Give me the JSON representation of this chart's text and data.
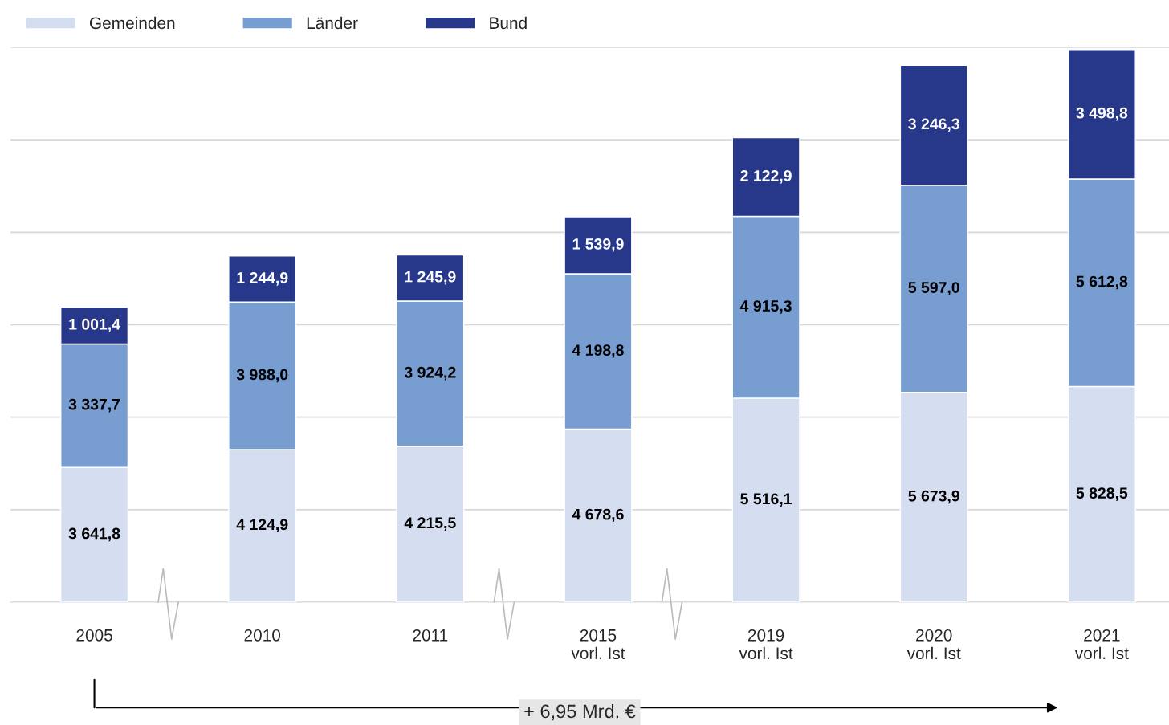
{
  "chart_data": {
    "type": "bar",
    "stacked": true,
    "categories": [
      "2005",
      "2010",
      "2011",
      "2015\nvorl. Ist",
      "2019\nvorl. Ist",
      "2020\nvorl. Ist",
      "2021\nvorl. Ist"
    ],
    "series": [
      {
        "name": "Gemeinden",
        "color": "#d5ddf0",
        "values": [
          3641.8,
          4124.9,
          4215.5,
          4678.6,
          5516.1,
          5673.9,
          5828.5
        ],
        "value_labels": [
          "3 641,8",
          "4 124,9",
          "4 215,5",
          "4 678,6",
          "5 516,1",
          "5 673,9",
          "5 828,5"
        ]
      },
      {
        "name": "Länder",
        "color": "#789dd0",
        "values": [
          3337.7,
          3988.0,
          3924.2,
          4198.8,
          4915.3,
          5597.0,
          5612.8
        ],
        "value_labels": [
          "3 337,7",
          "3 988,0",
          "3 924,2",
          "4 198,8",
          "4 915,3",
          "5 597,0",
          "5 612,8"
        ]
      },
      {
        "name": "Bund",
        "color": "#27388a",
        "values": [
          1001.4,
          1244.9,
          1245.9,
          1539.9,
          2122.9,
          3246.3,
          3498.8
        ],
        "value_labels": [
          "1 001,4",
          "1 244,9",
          "1 245,9",
          "1 539,9",
          "2 122,9",
          "3 246,3",
          "3 498,8"
        ]
      }
    ],
    "ylim": [
      0,
      15000
    ],
    "yticks": [
      {
        "value": 0,
        "label": null
      },
      {
        "value": 2500,
        "label": null
      },
      {
        "value": 5000,
        "label": null
      },
      {
        "value": 7500,
        "label": null
      },
      {
        "value": 10000,
        "label": null
      },
      {
        "value": 12500,
        "label": null
      },
      {
        "value": 15000,
        "label": null
      }
    ],
    "tick_labels": "x",
    "grid": "y",
    "legend": "top left",
    "annotations": [
      "+ 6,95 Mrd. €"
    ]
  }
}
